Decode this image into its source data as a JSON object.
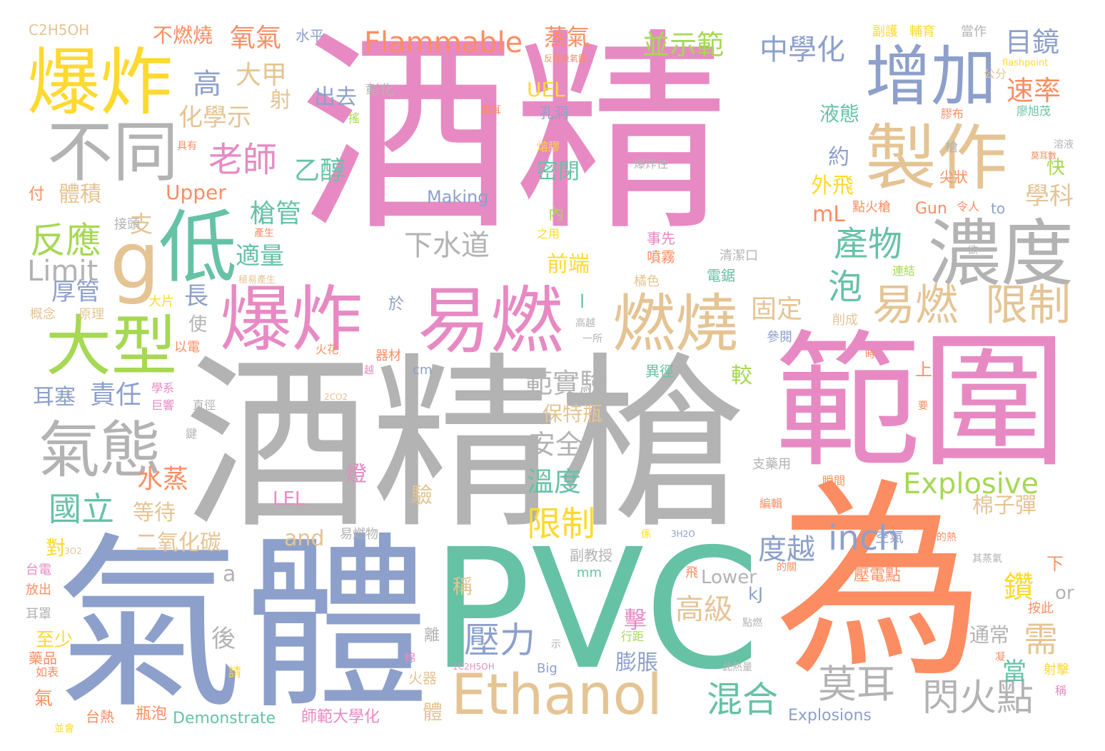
{
  "palette": {
    "pink": "#e78ac3",
    "grey": "#b3b3b3",
    "blue": "#8da0cb",
    "green": "#66c2a5",
    "orange": "#fc8d62",
    "yellow": "#ffd92f",
    "lime": "#a6d854",
    "tan": "#e5c494"
  },
  "words": [
    {
      "text": "酒精",
      "color": "#e78ac3"
    },
    {
      "text": "酒精槍",
      "color": "#b3b3b3"
    },
    {
      "text": "氣體",
      "color": "#8da0cb"
    },
    {
      "text": "PVC",
      "color": "#66c2a5"
    },
    {
      "text": "為",
      "color": "#fc8d62"
    },
    {
      "text": "範圍",
      "color": "#e78ac3"
    },
    {
      "text": "增加",
      "color": "#8da0cb"
    },
    {
      "text": "爆炸",
      "color": "#ffd92f"
    },
    {
      "text": "不同",
      "color": "#b3b3b3"
    },
    {
      "text": "製作",
      "color": "#e5c494"
    },
    {
      "text": "濃度",
      "color": "#b3b3b3"
    },
    {
      "text": "低",
      "color": "#66c2a5"
    },
    {
      "text": "g",
      "color": "#e5c494"
    },
    {
      "text": "大型",
      "color": "#a6d854"
    },
    {
      "text": "爆炸",
      "color": "#e78ac3"
    },
    {
      "text": "易燃",
      "color": "#e78ac3"
    },
    {
      "text": "燃燒",
      "color": "#e5c494"
    },
    {
      "text": "易燃",
      "color": "#e5c494"
    },
    {
      "text": "限制",
      "color": "#e5c494"
    },
    {
      "text": "Ethanol",
      "color": "#e5c494"
    },
    {
      "text": "氣態",
      "color": "#b3b3b3"
    },
    {
      "text": "反應",
      "color": "#a6d854"
    },
    {
      "text": "Limit",
      "color": "#b3b3b3"
    },
    {
      "text": "Flammable",
      "color": "#fc8d62"
    },
    {
      "text": "Explosive",
      "color": "#a6d854"
    },
    {
      "text": "inch",
      "color": "#8da0cb"
    },
    {
      "text": "莫耳",
      "color": "#b3b3b3"
    },
    {
      "text": "閃火點",
      "color": "#b3b3b3"
    },
    {
      "text": "混合",
      "color": "#66c2a5"
    },
    {
      "text": "壓力",
      "color": "#8da0cb"
    },
    {
      "text": "限制",
      "color": "#ffd92f"
    },
    {
      "text": "產物",
      "color": "#66c2a5"
    },
    {
      "text": "高",
      "color": "#8da0cb"
    },
    {
      "text": "老師",
      "color": "#e78ac3"
    },
    {
      "text": "國立",
      "color": "#66c2a5"
    },
    {
      "text": "中學化",
      "color": "#8da0cb"
    },
    {
      "text": "目鏡",
      "color": "#8da0cb"
    },
    {
      "text": "速率",
      "color": "#fc8d62"
    },
    {
      "text": "學科",
      "color": "#e5c494"
    },
    {
      "text": "並示範",
      "color": "#a6d854"
    },
    {
      "text": "蒸氣",
      "color": "#fc8d62"
    },
    {
      "text": "氧氣",
      "color": "#fc8d62"
    },
    {
      "text": "不燃燒",
      "color": "#fc8d62"
    },
    {
      "text": "大甲",
      "color": "#e5c494"
    },
    {
      "text": "化學示",
      "color": "#e5c494"
    },
    {
      "text": "乙醇",
      "color": "#66c2a5"
    },
    {
      "text": "下水道",
      "color": "#b3b3b3"
    },
    {
      "text": "範實驗",
      "color": "#b3b3b3"
    },
    {
      "text": "安全",
      "color": "#b3b3b3"
    },
    {
      "text": "溫度",
      "color": "#66c2a5"
    },
    {
      "text": "度越",
      "color": "#8da0cb"
    },
    {
      "text": "高級",
      "color": "#e5c494"
    },
    {
      "text": "鑽",
      "color": "#ffd92f"
    },
    {
      "text": "需",
      "color": "#e5c494"
    },
    {
      "text": "泡",
      "color": "#66c2a5"
    },
    {
      "text": "固定",
      "color": "#e5c494"
    },
    {
      "text": "槍管",
      "color": "#66c2a5"
    },
    {
      "text": "適量",
      "color": "#66c2a5"
    },
    {
      "text": "厚管",
      "color": "#8da0cb"
    },
    {
      "text": "責任",
      "color": "#8da0cb"
    },
    {
      "text": "耳塞",
      "color": "#8da0cb"
    },
    {
      "text": "水蒸",
      "color": "#fc8d62"
    },
    {
      "text": "等待",
      "color": "#e5c494"
    },
    {
      "text": "二氧化碳",
      "color": "#e5c494"
    },
    {
      "text": "體積",
      "color": "#e5c494"
    },
    {
      "text": "Upper",
      "color": "#fc8d62"
    },
    {
      "text": "Making",
      "color": "#8da0cb"
    },
    {
      "text": "mL",
      "color": "#fc8d62"
    },
    {
      "text": "UEL",
      "color": "#ffd92f"
    },
    {
      "text": "LEL",
      "color": "#e78ac3"
    },
    {
      "text": "and",
      "color": "#e5c494"
    },
    {
      "text": "Lower",
      "color": "#b3b3b3"
    },
    {
      "text": "Demonstrate",
      "color": "#66c2a5"
    },
    {
      "text": "Explosions",
      "color": "#8da0cb"
    },
    {
      "text": "Gun",
      "color": "#fc8d62"
    },
    {
      "text": "to",
      "color": "#8da0cb"
    },
    {
      "text": "or",
      "color": "#b3b3b3"
    },
    {
      "text": "kJ",
      "color": "#8da0cb"
    },
    {
      "text": "cm",
      "color": "#8da0cb"
    },
    {
      "text": "mm",
      "color": "#66c2a5"
    },
    {
      "text": "Big",
      "color": "#8da0cb"
    },
    {
      "text": "C2H5OH",
      "color": "#e5c494"
    },
    {
      "text": "2CO2",
      "color": "#e5c494"
    },
    {
      "text": "3O2",
      "color": "#e5c494"
    },
    {
      "text": "3H2O",
      "color": "#8da0cb"
    },
    {
      "text": "1C2H5OH",
      "color": "#e78ac3"
    },
    {
      "text": "flashpoint",
      "color": "#ffd92f"
    },
    {
      "text": "前端",
      "color": "#ffd92f"
    },
    {
      "text": "密閉",
      "color": "#66c2a5"
    },
    {
      "text": "液態",
      "color": "#66c2a5"
    },
    {
      "text": "外飛",
      "color": "#ffd92f"
    },
    {
      "text": "約",
      "color": "#8da0cb"
    },
    {
      "text": "保特瓶",
      "color": "#e5c494"
    },
    {
      "text": "棉子彈",
      "color": "#e5c494"
    },
    {
      "text": "通常",
      "color": "#b3b3b3"
    },
    {
      "text": "當",
      "color": "#66c2a5"
    },
    {
      "text": "膨脹",
      "color": "#8da0cb"
    },
    {
      "text": "擊",
      "color": "#e78ac3"
    },
    {
      "text": "後",
      "color": "#b3b3b3"
    },
    {
      "text": "a",
      "color": "#b3b3b3"
    },
    {
      "text": "燈",
      "color": "#e78ac3"
    },
    {
      "text": "驗",
      "color": "#e5c494"
    },
    {
      "text": "稱",
      "color": "#e5c494"
    },
    {
      "text": "體",
      "color": "#e5c494"
    },
    {
      "text": "至少",
      "color": "#ffd92f"
    },
    {
      "text": "長",
      "color": "#8da0cb"
    },
    {
      "text": "使",
      "color": "#b3b3b3"
    },
    {
      "text": "支",
      "color": "#e5c494"
    },
    {
      "text": "射",
      "color": "#e5c494"
    },
    {
      "text": "出去",
      "color": "#8da0cb"
    },
    {
      "text": "彰化",
      "color": "#b3b3b3"
    },
    {
      "text": "水平",
      "color": "#8da0cb"
    },
    {
      "text": "孔洞",
      "color": "#8da0cb"
    },
    {
      "text": "副教授",
      "color": "#b3b3b3"
    },
    {
      "text": "師範大學化",
      "color": "#e78ac3"
    },
    {
      "text": "台熱",
      "color": "#fc8d62"
    },
    {
      "text": "瓶泡",
      "color": "#fc8d62"
    },
    {
      "text": "火器",
      "color": "#e5c494"
    },
    {
      "text": "上",
      "color": "#fc8d62"
    },
    {
      "text": "下",
      "color": "#fc8d62"
    },
    {
      "text": "快",
      "color": "#a6d854"
    },
    {
      "text": "較",
      "color": "#a6d854"
    },
    {
      "text": "於",
      "color": "#8da0cb"
    },
    {
      "text": "內",
      "color": "#a6d854"
    },
    {
      "text": "離",
      "color": "#b3b3b3"
    },
    {
      "text": "對",
      "color": "#ffd92f"
    },
    {
      "text": "付",
      "color": "#fc8d62"
    },
    {
      "text": "接頭",
      "color": "#b3b3b3"
    },
    {
      "text": "概念",
      "color": "#e5c494"
    },
    {
      "text": "原理",
      "color": "#e5c494"
    },
    {
      "text": "以電",
      "color": "#fc8d62"
    },
    {
      "text": "大片",
      "color": "#ffd92f"
    },
    {
      "text": "台電",
      "color": "#e78ac3"
    },
    {
      "text": "放出",
      "color": "#fc8d62"
    },
    {
      "text": "耳罩",
      "color": "#b3b3b3"
    },
    {
      "text": "藥品",
      "color": "#fc8d62"
    },
    {
      "text": "如表",
      "color": "#fc8d62"
    },
    {
      "text": "氣",
      "color": "#fc8d62"
    },
    {
      "text": "並會",
      "color": "#ffd92f"
    },
    {
      "text": "易燃物",
      "color": "#b3b3b3"
    },
    {
      "text": "空氣",
      "color": "#8da0cb"
    },
    {
      "text": "壓電點",
      "color": "#fc8d62"
    },
    {
      "text": "噴霧",
      "color": "#fc8d62"
    },
    {
      "text": "事先",
      "color": "#e78ac3"
    },
    {
      "text": "橘色",
      "color": "#e5c494"
    },
    {
      "text": "電鋸",
      "color": "#66c2a5"
    },
    {
      "text": "削成",
      "color": "#e5c494"
    },
    {
      "text": "參閱",
      "color": "#8da0cb"
    },
    {
      "text": "異徑",
      "color": "#66c2a5"
    },
    {
      "text": "清潔口",
      "color": "#b3b3b3"
    },
    {
      "text": "點火槍",
      "color": "#fc8d62"
    },
    {
      "text": "尖狀",
      "color": "#fc8d62"
    },
    {
      "text": "廖旭茂",
      "color": "#66c2a5"
    },
    {
      "text": "膠布",
      "color": "#fc8d62"
    },
    {
      "text": "公分",
      "color": "#e5c494"
    },
    {
      "text": "副護",
      "color": "#ffd92f"
    },
    {
      "text": "輔育",
      "color": "#ffd92f"
    },
    {
      "text": "當作",
      "color": "#b3b3b3"
    },
    {
      "text": "溶液",
      "color": "#b3b3b3"
    },
    {
      "text": "令人",
      "color": "#fc8d62"
    },
    {
      "text": "連結",
      "color": "#a6d854"
    },
    {
      "text": "欲",
      "color": "#b3b3b3"
    },
    {
      "text": "槍",
      "color": "#b3b3b3"
    },
    {
      "text": "爆炸性",
      "color": "#b3b3b3"
    },
    {
      "text": "熔膠",
      "color": "#ffd92f"
    },
    {
      "text": "具有",
      "color": "#fc8d62"
    },
    {
      "text": "震耳",
      "color": "#fc8d62"
    },
    {
      "text": "搖",
      "color": "#a6d854"
    },
    {
      "text": "之用",
      "color": "#ffd92f"
    },
    {
      "text": "產生",
      "color": "#fc8d62"
    },
    {
      "text": "極易產生",
      "color": "#e5c494"
    },
    {
      "text": "高越",
      "color": "#b3b3b3"
    },
    {
      "text": "一所",
      "color": "#b3b3b3"
    },
    {
      "text": "器材",
      "color": "#fc8d62"
    },
    {
      "text": "火花",
      "color": "#fc8d62"
    },
    {
      "text": "越",
      "color": "#e78ac3"
    },
    {
      "text": "學系",
      "color": "#e78ac3"
    },
    {
      "text": "巨響",
      "color": "#e78ac3"
    },
    {
      "text": "直徑",
      "color": "#b3b3b3"
    },
    {
      "text": "鍵",
      "color": "#b3b3b3"
    },
    {
      "text": "支藥用",
      "color": "#b3b3b3"
    },
    {
      "text": "瞬間",
      "color": "#fc8d62"
    },
    {
      "text": "編輯",
      "color": "#fc8d62"
    },
    {
      "text": "的關",
      "color": "#fc8d62"
    },
    {
      "text": "此熱量",
      "color": "#b3b3b3"
    },
    {
      "text": "飛",
      "color": "#fc8d62"
    },
    {
      "text": "示",
      "color": "#b3b3b3"
    },
    {
      "text": "棉",
      "color": "#e78ac3"
    },
    {
      "text": "請",
      "color": "#ffd92f"
    },
    {
      "text": "係",
      "color": "#ffd92f"
    },
    {
      "text": "行距",
      "color": "#a6d854"
    },
    {
      "text": "點燃",
      "color": "#b3b3b3"
    },
    {
      "text": "的熱",
      "color": "#fc8d62"
    },
    {
      "text": "其蒸氣",
      "color": "#b3b3b3"
    },
    {
      "text": "按此",
      "color": "#fc8d62"
    },
    {
      "text": "射擊",
      "color": "#ffd92f"
    },
    {
      "text": "稱",
      "color": "#e78ac3"
    },
    {
      "text": "凝",
      "color": "#fc8d62"
    },
    {
      "text": "莫耳數",
      "color": "#fc8d62"
    },
    {
      "text": "反應後氣體",
      "color": "#fc8d62"
    },
    {
      "text": "l",
      "color": "#66c2a5"
    },
    {
      "text": "要",
      "color": "#fc8d62"
    },
    {
      "text": "時",
      "color": "#fc8d62"
    }
  ]
}
